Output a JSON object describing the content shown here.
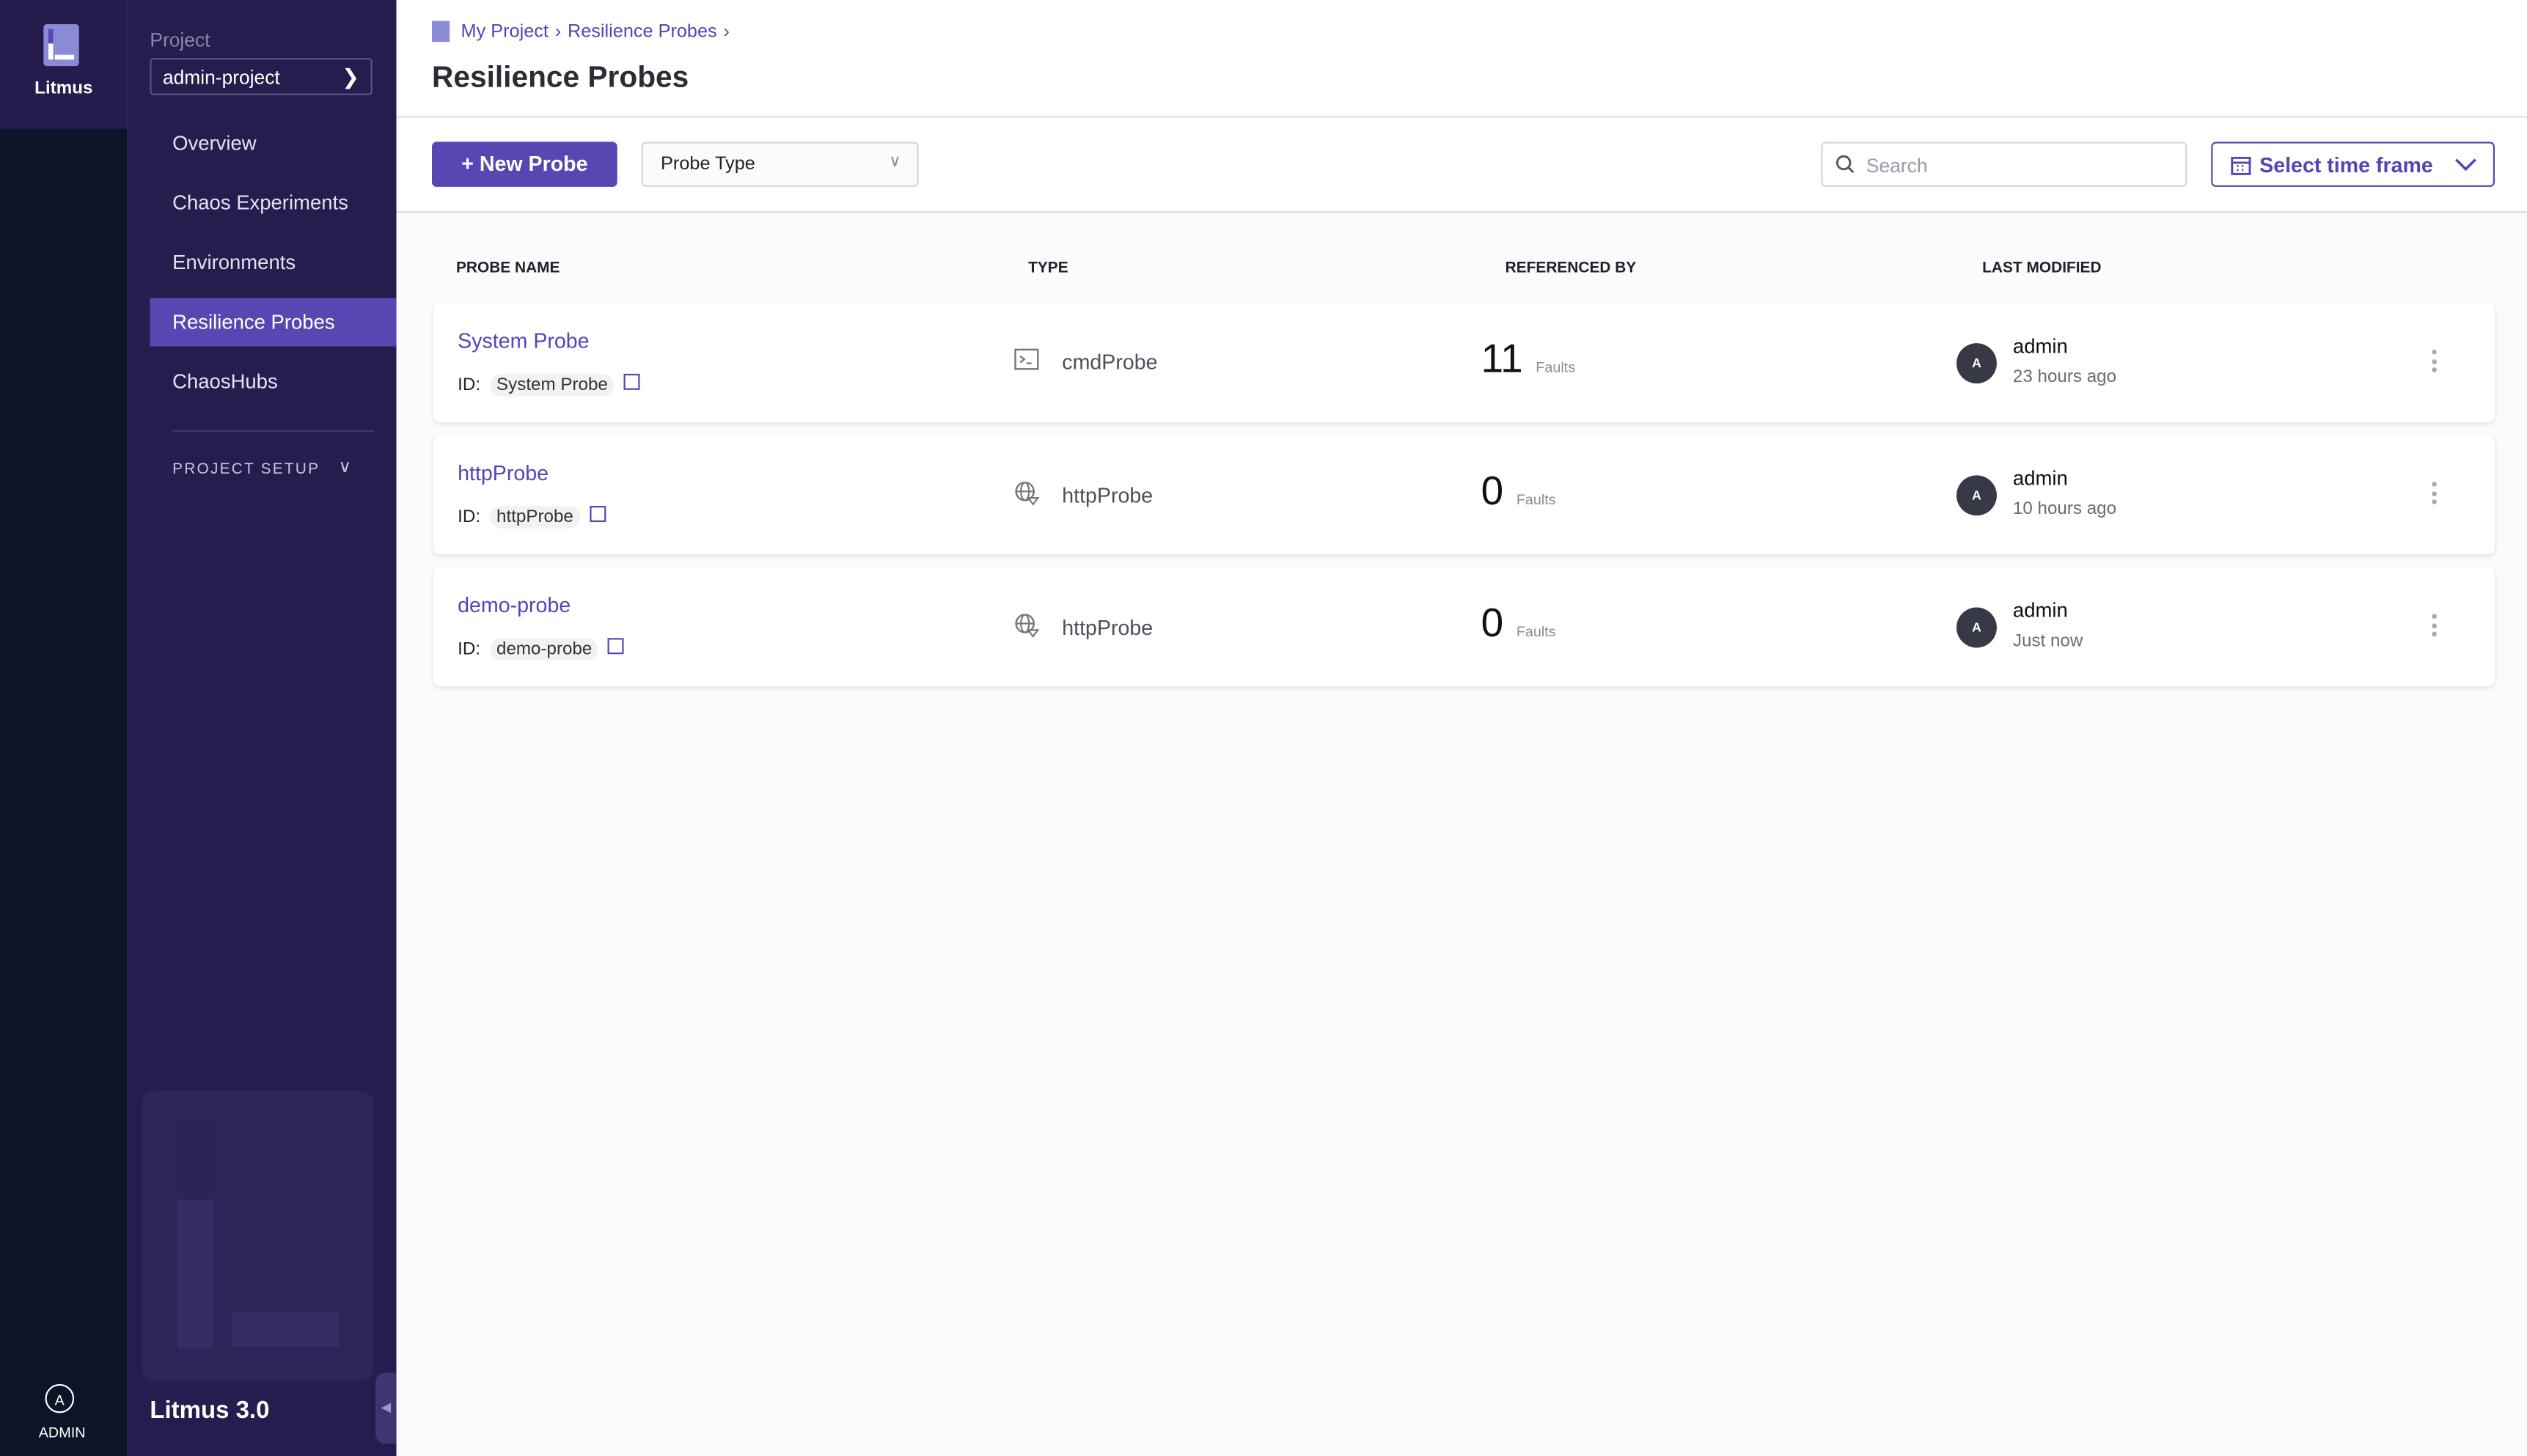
{
  "rail": {
    "brand": "Litmus",
    "user_initial": "A",
    "user_label": "ADMIN"
  },
  "sidebar": {
    "project_label": "Project",
    "project_value": "admin-project",
    "items": [
      {
        "label": "Overview"
      },
      {
        "label": "Chaos Experiments"
      },
      {
        "label": "Environments"
      },
      {
        "label": "Resilience Probes",
        "active": true
      },
      {
        "label": "ChaosHubs"
      }
    ],
    "section": "PROJECT SETUP",
    "version": "Litmus 3.0"
  },
  "header": {
    "breadcrumbs": [
      "My Project",
      "Resilience Probes"
    ],
    "title": "Resilience Probes"
  },
  "toolbar": {
    "new_probe": "New Probe",
    "probe_type": "Probe Type",
    "search_placeholder": "Search",
    "time_frame": "Select time frame"
  },
  "table": {
    "columns": [
      "PROBE NAME",
      "TYPE",
      "REFERENCED BY",
      "LAST MODIFIED"
    ],
    "id_label": "ID:",
    "faults_label": "Faults",
    "rows": [
      {
        "name": "System Probe",
        "id": "System Probe",
        "type": "cmdProbe",
        "type_icon": "terminal-icon",
        "referenced": "11",
        "user_initial": "A",
        "user": "admin",
        "modified": "23 hours ago"
      },
      {
        "name": "httpProbe",
        "id": "httpProbe",
        "type": "httpProbe",
        "type_icon": "globe-icon",
        "referenced": "0",
        "user_initial": "A",
        "user": "admin",
        "modified": "10 hours ago"
      },
      {
        "name": "demo-probe",
        "id": "demo-probe",
        "type": "httpProbe",
        "type_icon": "globe-icon",
        "referenced": "0",
        "user_initial": "A",
        "user": "admin",
        "modified": "Just now"
      }
    ]
  },
  "colors": {
    "accent": "#5847b2",
    "sidebar": "#251d4e",
    "rail": "#0b1527"
  }
}
